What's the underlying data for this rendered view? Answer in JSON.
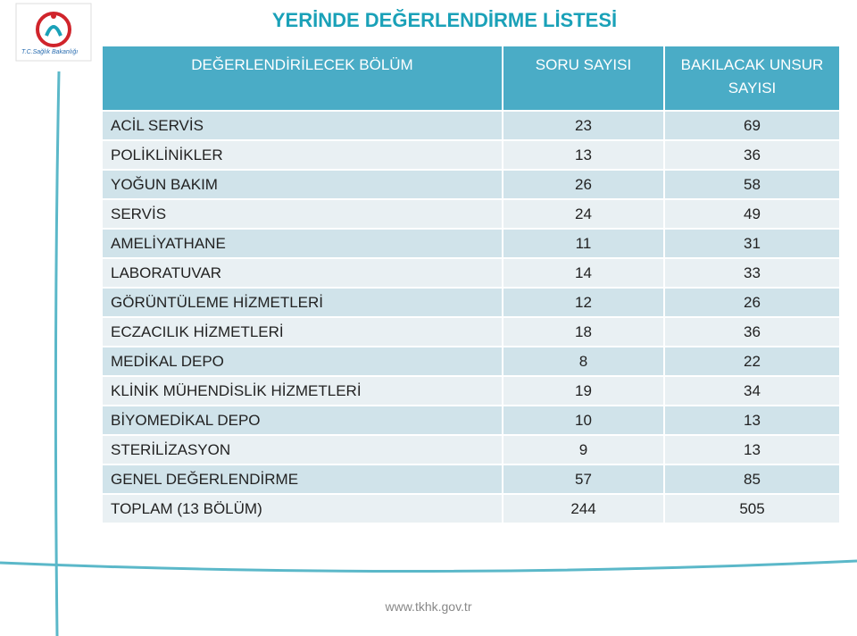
{
  "logo_text": "T.C.Sağlık Bakanlığı",
  "title": "YERİNDE DEĞERLENDİRME  LİSTESİ",
  "table": {
    "header": [
      "DEĞERLENDİRİLECEK BÖLÜM",
      "SORU SAYISI",
      "BAKILACAK UNSUR SAYISI"
    ],
    "rows": [
      [
        "ACİL SERVİS",
        23,
        69
      ],
      [
        "POLİKLİNİKLER",
        13,
        36
      ],
      [
        "YOĞUN BAKIM",
        26,
        58
      ],
      [
        "SERVİS",
        24,
        49
      ],
      [
        "AMELİYATHANE",
        11,
        31
      ],
      [
        "LABORATUVAR",
        14,
        33
      ],
      [
        "GÖRÜNTÜLEME HİZMETLERİ",
        12,
        26
      ],
      [
        "ECZACILIK HİZMETLERİ",
        18,
        36
      ],
      [
        "MEDİKAL DEPO",
        8,
        22
      ],
      [
        "KLİNİK MÜHENDİSLİK HİZMETLERİ",
        19,
        34
      ],
      [
        "BİYOMEDİKAL DEPO",
        10,
        13
      ],
      [
        "STERİLİZASYON",
        9,
        13
      ],
      [
        "GENEL DEĞERLENDİRME",
        57,
        85
      ],
      [
        "TOPLAM (13 BÖLÜM)",
        244,
        505
      ]
    ]
  },
  "footer": "www.tkhk.gov.tr"
}
